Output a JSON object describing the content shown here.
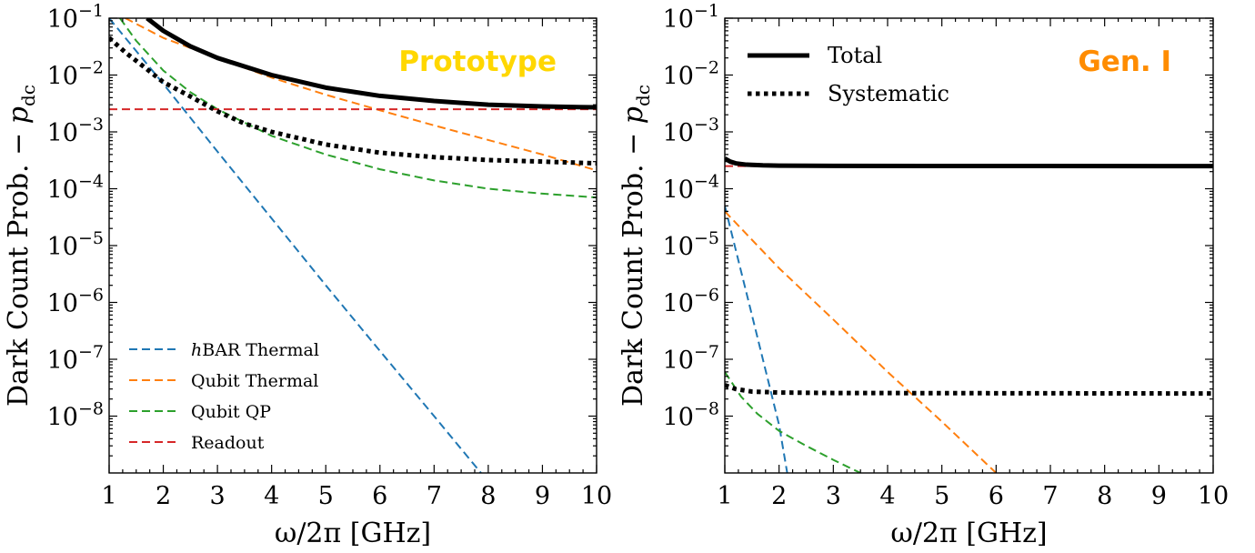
{
  "chart_data": [
    {
      "type": "line",
      "title": "Prototype",
      "title_color": "#FFD700",
      "xlabel": "ω/2π [GHz]",
      "ylabel": "Dark Count Prob. − p_dc",
      "xlim": [
        1,
        10
      ],
      "ylim": [
        1e-09,
        0.1
      ],
      "yscale": "log",
      "xticks": [
        1,
        2,
        3,
        4,
        5,
        6,
        7,
        8,
        9,
        10
      ],
      "yticks": [
        {
          "value": 0.1,
          "base": "10",
          "exp": "−1"
        },
        {
          "value": 0.01,
          "base": "10",
          "exp": "−2"
        },
        {
          "value": 0.001,
          "base": "10",
          "exp": "−3"
        },
        {
          "value": 0.0001,
          "base": "10",
          "exp": "−4"
        },
        {
          "value": 1e-05,
          "base": "10",
          "exp": "−5"
        },
        {
          "value": 1e-06,
          "base": "10",
          "exp": "−6"
        },
        {
          "value": 1e-07,
          "base": "10",
          "exp": "−7"
        },
        {
          "value": 1e-08,
          "base": "10",
          "exp": "−8"
        }
      ],
      "legend_position": "lower-left",
      "legend": [
        {
          "name": "hBAR Thermal",
          "color": "#1f77b4",
          "style": "dashed"
        },
        {
          "name": "Qubit Thermal",
          "color": "#ff7f0e",
          "style": "dashed"
        },
        {
          "name": "Qubit QP",
          "color": "#2ca02c",
          "style": "dashed"
        },
        {
          "name": "Readout",
          "color": "#d62728",
          "style": "dashed"
        }
      ],
      "series": [
        {
          "name": "hBAR Thermal",
          "color": "#1f77b4",
          "style": "dashed",
          "width": 2,
          "x": [
            1,
            2,
            3,
            4,
            5,
            6,
            7,
            8,
            8.6
          ],
          "y": [
            0.1,
            0.007,
            0.00045,
            3e-05,
            2e-06,
            1.4e-07,
            1e-08,
            7e-10,
            1e-10
          ]
        },
        {
          "name": "Qubit Thermal",
          "color": "#ff7f0e",
          "style": "dashed",
          "width": 2,
          "x": [
            1.3,
            2,
            3,
            4,
            5,
            6,
            7,
            8,
            9,
            10
          ],
          "y": [
            0.1,
            0.045,
            0.02,
            0.009,
            0.0045,
            0.0024,
            0.0013,
            0.00072,
            0.0004,
            0.00021
          ]
        },
        {
          "name": "Qubit QP",
          "color": "#2ca02c",
          "style": "dashed",
          "width": 2,
          "x": [
            1.2,
            1.5,
            2,
            2.5,
            3,
            4,
            5,
            6,
            7,
            8,
            9,
            10
          ],
          "y": [
            0.1,
            0.04,
            0.012,
            0.005,
            0.0025,
            0.00085,
            0.0004,
            0.00022,
            0.00014,
            0.0001,
            8.2e-05,
            7e-05
          ]
        },
        {
          "name": "Readout",
          "color": "#d62728",
          "style": "dashed",
          "width": 2,
          "x": [
            1,
            10
          ],
          "y": [
            0.0025,
            0.0025
          ]
        },
        {
          "name": "Total",
          "color": "#000000",
          "style": "solid",
          "width": 5,
          "x": [
            1.7,
            2,
            2.5,
            3,
            4,
            5,
            6,
            7,
            8,
            9,
            10
          ],
          "y": [
            0.1,
            0.06,
            0.032,
            0.02,
            0.01,
            0.006,
            0.0043,
            0.0035,
            0.003,
            0.0028,
            0.0027
          ]
        },
        {
          "name": "Systematic",
          "color": "#000000",
          "style": "dotted",
          "width": 5,
          "x": [
            1,
            1.3,
            1.6,
            2,
            2.5,
            3,
            3.5,
            4,
            5,
            6,
            7,
            8,
            9,
            10
          ],
          "y": [
            0.045,
            0.025,
            0.015,
            0.0075,
            0.0042,
            0.0023,
            0.0014,
            0.001,
            0.0006,
            0.00043,
            0.00036,
            0.00032,
            0.0003,
            0.00028
          ]
        }
      ]
    },
    {
      "type": "line",
      "title": "Gen. I",
      "title_color": "#FF8C00",
      "xlabel": "ω/2π [GHz]",
      "ylabel": "Dark Count Prob. − p_dc",
      "xlim": [
        1,
        10
      ],
      "ylim": [
        1e-09,
        0.1
      ],
      "yscale": "log",
      "xticks": [
        1,
        2,
        3,
        4,
        5,
        6,
        7,
        8,
        9,
        10
      ],
      "yticks": [
        {
          "value": 0.1,
          "base": "10",
          "exp": "−1"
        },
        {
          "value": 0.01,
          "base": "10",
          "exp": "−2"
        },
        {
          "value": 0.001,
          "base": "10",
          "exp": "−3"
        },
        {
          "value": 0.0001,
          "base": "10",
          "exp": "−4"
        },
        {
          "value": 1e-05,
          "base": "10",
          "exp": "−5"
        },
        {
          "value": 1e-06,
          "base": "10",
          "exp": "−6"
        },
        {
          "value": 1e-07,
          "base": "10",
          "exp": "−7"
        },
        {
          "value": 1e-08,
          "base": "10",
          "exp": "−8"
        }
      ],
      "legend_position": "top-left",
      "legend": [
        {
          "name": "Total",
          "color": "#000000",
          "style": "solid"
        },
        {
          "name": "Systematic",
          "color": "#000000",
          "style": "dotted"
        }
      ],
      "series": [
        {
          "name": "hBAR Thermal",
          "color": "#1f77b4",
          "style": "dashed",
          "width": 2,
          "x": [
            1,
            1.5,
            2,
            2.15
          ],
          "y": [
            5e-05,
            6e-07,
            7e-09,
            1e-09
          ]
        },
        {
          "name": "Qubit Thermal",
          "color": "#ff7f0e",
          "style": "dashed",
          "width": 2,
          "x": [
            1,
            2,
            3,
            4,
            5,
            6
          ],
          "y": [
            4e-05,
            4e-06,
            5e-07,
            6e-08,
            8e-09,
            1e-09
          ]
        },
        {
          "name": "Qubit QP",
          "color": "#2ca02c",
          "style": "dashed",
          "width": 2,
          "x": [
            1,
            1.3,
            1.6,
            2,
            2.5,
            3,
            3.5
          ],
          "y": [
            6e-08,
            2.2e-08,
            1.1e-08,
            5.5e-09,
            3e-09,
            1.7e-09,
            1e-09
          ]
        },
        {
          "name": "Readout",
          "color": "#d62728",
          "style": "dashed",
          "width": 2,
          "x": [
            1,
            10
          ],
          "y": [
            0.00025,
            0.00025
          ]
        },
        {
          "name": "Total",
          "color": "#000000",
          "style": "solid",
          "width": 5,
          "x": [
            1,
            1.1,
            1.2,
            1.4,
            1.7,
            2,
            3,
            5,
            10
          ],
          "y": [
            0.00034,
            0.0003,
            0.00028,
            0.000265,
            0.000258,
            0.000255,
            0.000252,
            0.000251,
            0.00025
          ]
        },
        {
          "name": "Systematic",
          "color": "#000000",
          "style": "dotted",
          "width": 5,
          "x": [
            1,
            1.2,
            1.5,
            2,
            3,
            10
          ],
          "y": [
            3.5e-08,
            3e-08,
            2.7e-08,
            2.6e-08,
            2.55e-08,
            2.5e-08
          ]
        }
      ]
    }
  ]
}
